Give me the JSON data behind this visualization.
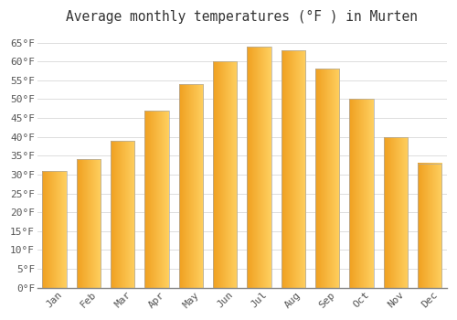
{
  "title": "Average monthly temperatures (°F ) in Murten",
  "months": [
    "Jan",
    "Feb",
    "Mar",
    "Apr",
    "May",
    "Jun",
    "Jul",
    "Aug",
    "Sep",
    "Oct",
    "Nov",
    "Dec"
  ],
  "values": [
    31,
    34,
    39,
    47,
    54,
    60,
    64,
    63,
    58,
    50,
    40,
    33
  ],
  "bar_color_left": "#F0A020",
  "bar_color_right": "#FFD060",
  "ylim": [
    0,
    68
  ],
  "yticks": [
    0,
    5,
    10,
    15,
    20,
    25,
    30,
    35,
    40,
    45,
    50,
    55,
    60,
    65
  ],
  "background_color": "#FFFFFF",
  "grid_color": "#DDDDDD",
  "title_fontsize": 10.5,
  "tick_fontsize": 8,
  "font_color": "#555555",
  "bar_width": 0.7
}
